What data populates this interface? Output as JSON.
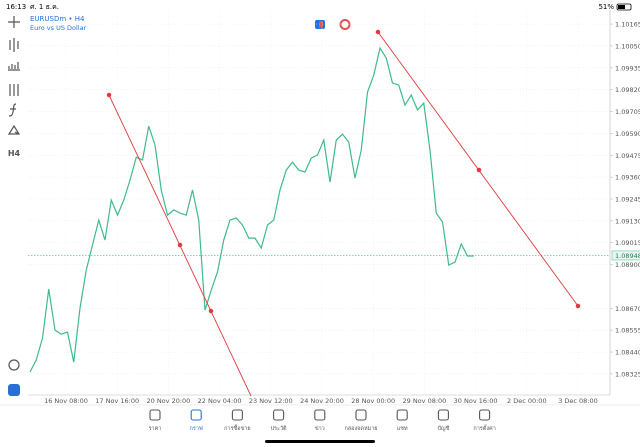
{
  "status_bar": {
    "time": "16:13",
    "date": "ศ. 1 ธ.ค.",
    "battery": "51%"
  },
  "symbol": {
    "name": "EURUSDm • H4",
    "description": "Euro vs US Dollar"
  },
  "toolbar": {
    "timeframe": "H4"
  },
  "chart_data": {
    "type": "line",
    "color": "#3dbb8a",
    "grid": true,
    "ylim": [
      1.08214,
      1.10239
    ],
    "yticks": [
      1.10165,
      {
        "value": 1.1005,
        "label": "1.10050"
      },
      1.09935,
      {
        "value": 1.0982,
        "label": "1.09820"
      },
      1.09705,
      {
        "value": 1.0959,
        "label": "1.09590"
      },
      1.09475,
      {
        "value": 1.0936,
        "label": "1.09360"
      },
      1.09245,
      {
        "value": 1.0913,
        "label": "1.09130"
      },
      1.09015,
      {
        "value": 1.089,
        "label": "1.08900"
      },
      {
        "value": 1.0867,
        "label": "1.08670"
      },
      1.08555,
      {
        "value": 1.0844,
        "label": "1.08440"
      },
      1.08325
    ],
    "xtick_labels": [
      "16 Nov 08:00",
      "17 Nov 16:00",
      "20 Nov 20:00",
      "22 Nov 04:00",
      "23 Nov 12:00",
      "24 Nov 20:00",
      "28 Nov 00:00",
      "29 Nov 08:00",
      "30 Nov 16:00",
      "2 Dec 00:00",
      "3 Dec 08:00"
    ],
    "current_price": 1.08948,
    "values": [
      1.08335,
      1.08398,
      1.08513,
      1.08771,
      1.08555,
      1.08534,
      1.08545,
      1.08387,
      1.08671,
      1.08871,
      1.09003,
      1.09134,
      1.09029,
      1.09239,
      1.0916,
      1.09239,
      1.09344,
      1.09465,
      1.0945,
      1.09628,
      1.09529,
      1.09292,
      1.0916,
      1.09187,
      1.09171,
      1.0916,
      1.09292,
      1.09134,
      1.08661,
      1.08766,
      1.08861,
      1.09029,
      1.09134,
      1.09145,
      1.09108,
      1.09039,
      1.09039,
      1.08987,
      1.09108,
      1.09134,
      1.09292,
      1.09397,
      1.09439,
      1.09397,
      1.09387,
      1.0946,
      1.09476,
      1.09555,
      1.09334,
      1.09555,
      1.09586,
      1.09544,
      1.09355,
      1.09502,
      1.09807,
      1.09897,
      1.10039,
      1.09986,
      1.09855,
      1.09844,
      1.09739,
      1.09792,
      1.09713,
      1.09749,
      1.09502,
      1.09171,
      1.09124,
      1.08897,
      1.08913,
      1.09008,
      1.08945,
      1.08945
    ]
  },
  "nav": [
    "ราคา",
    "กราฟ",
    "การซื้อขาย",
    "ประวัติ",
    "ข่าว",
    "กล่องจดหมาย",
    "แชท",
    "บัญชี",
    "การตั้งค่า"
  ],
  "nav_active": 1
}
